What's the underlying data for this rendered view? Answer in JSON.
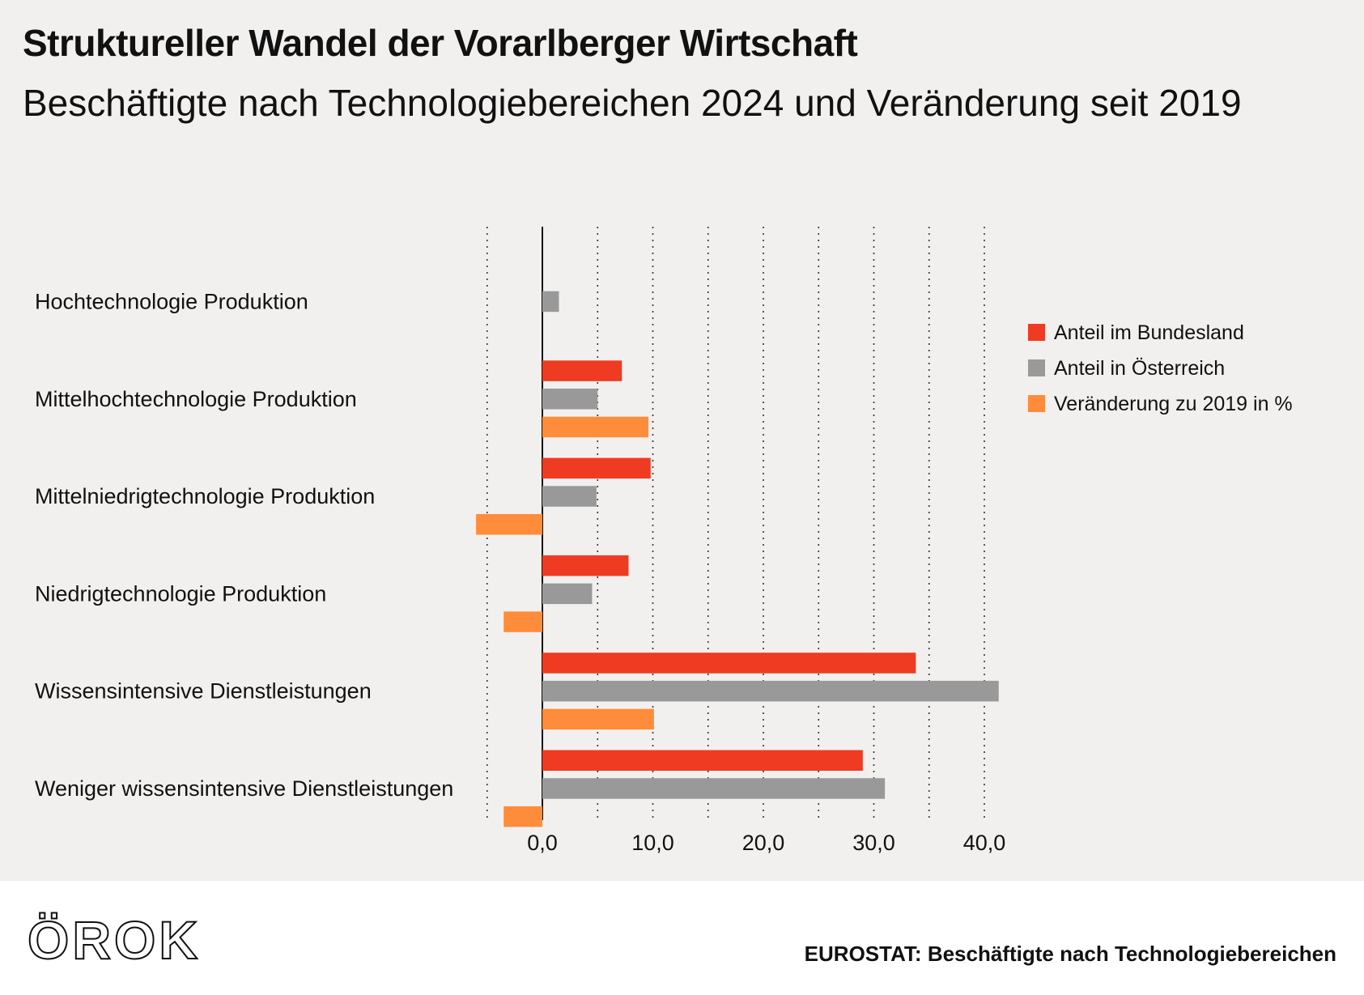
{
  "header": {
    "title": "Struktureller Wandel der Vorarlberger Wirtschaft",
    "subtitle": "Beschäftigte nach Technologiebereichen 2024 und Veränderung seit 2019"
  },
  "footer": {
    "logo_text": "ÖROK",
    "source": "EUROSTAT: Beschäftigte nach Technologiebereichen"
  },
  "chart_data": {
    "type": "bar",
    "orientation": "horizontal",
    "title": "Struktureller Wandel der Vorarlberger Wirtschaft",
    "subtitle": "Beschäftigte nach Technologiebereichen 2024 und Veränderung seit 2019",
    "categories": [
      "Hochtechnologie Produktion",
      "Mittelhochtechnologie Produktion",
      "Mittelniedrigtechnologie Produktion",
      "Niedrigtechnologie Produktion",
      "Wissensintensive Dienstleistungen",
      "Weniger wissensintensive Dienstleistungen"
    ],
    "series": [
      {
        "name": "Anteil im Bundesland",
        "color": "#ee3b22",
        "values": [
          null,
          7.2,
          9.8,
          7.8,
          33.8,
          29.0
        ]
      },
      {
        "name": "Anteil in Österreich",
        "color": "#999999",
        "values": [
          1.5,
          5.0,
          4.9,
          4.5,
          41.3,
          31.0
        ]
      },
      {
        "name": "Veränderung zu 2019 in %",
        "color": "#ff8c3a",
        "values": [
          null,
          9.6,
          -6.0,
          -3.5,
          10.1,
          -3.5
        ]
      }
    ],
    "xlim": [
      -5,
      40
    ],
    "xticks": [
      0,
      10,
      20,
      30,
      40
    ],
    "xtick_labels": [
      "0,0",
      "10,0",
      "20,0",
      "30,0",
      "40,0"
    ],
    "gridlines": [
      -5,
      5,
      10,
      15,
      20,
      25,
      30,
      35,
      40
    ],
    "grid": "dotted",
    "legend_position": "right"
  }
}
